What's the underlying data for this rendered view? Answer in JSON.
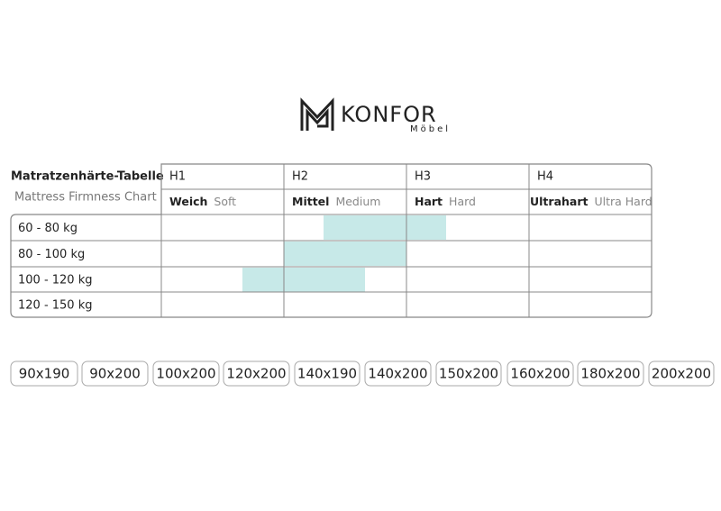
{
  "logo": {
    "brand": "KONFOR",
    "sub": "Möbel"
  },
  "table": {
    "title": "Matratzenhärte-Tabelle",
    "subtitle": "Mattress Firmness Chart",
    "columns": [
      {
        "level": "H1",
        "name_de": "Weich",
        "name_en": "Soft"
      },
      {
        "level": "H2",
        "name_de": "Mittel",
        "name_en": "Medium"
      },
      {
        "level": "H3",
        "name_de": "Hart",
        "name_en": "Hard"
      },
      {
        "level": "H4",
        "name_de": "Ultrahart",
        "name_en": "Ultra Hard"
      }
    ],
    "rows": [
      "60 - 80 kg",
      "80 - 100 kg",
      "100 - 120 kg",
      "120 - 150 kg"
    ]
  },
  "sizes": [
    "90x190",
    "90x200",
    "100x200",
    "120x200",
    "140x190",
    "140x200",
    "150x200",
    "160x200",
    "180x200",
    "200x200"
  ]
}
